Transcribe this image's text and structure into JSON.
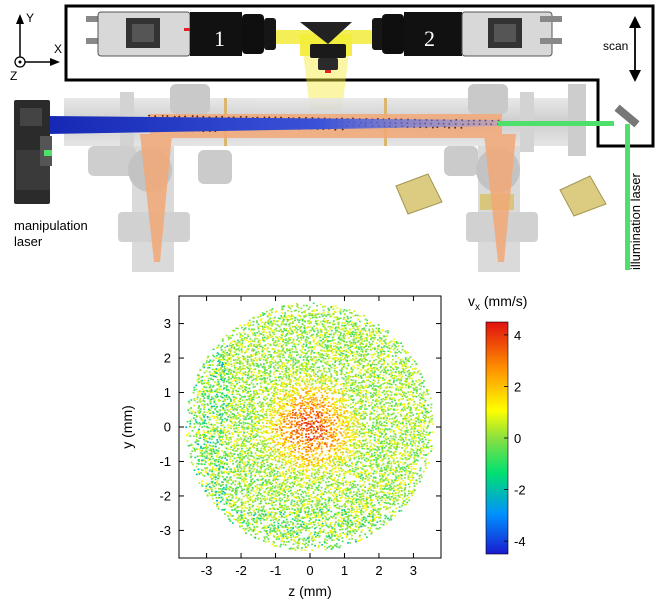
{
  "setup": {
    "axes": {
      "y": "Y",
      "x": "X",
      "z": "Z"
    },
    "camera_labels": [
      "1",
      "2"
    ],
    "scan_label": "scan",
    "manipulation_label_line1": "manipulation",
    "manipulation_label_line2": "laser",
    "illumination_label": "illumination laser"
  },
  "chart_data": {
    "type": "scatter",
    "xlabel": "z (mm)",
    "ylabel": "y (mm)",
    "xlim": [
      -3.8,
      3.8
    ],
    "ylim": [
      -3.8,
      3.8
    ],
    "xticks": [
      -3,
      -2,
      -1,
      0,
      1,
      2,
      3
    ],
    "yticks": [
      -3,
      -2,
      -1,
      0,
      1,
      2,
      3
    ],
    "xtick_labels": [
      "-3",
      "-2",
      "-1",
      "0",
      "1",
      "2",
      "3"
    ],
    "ytick_labels": [
      "-3",
      "-2",
      "-1",
      "0",
      "1",
      "2",
      "3"
    ],
    "field_radius_mm": 3.6,
    "peak_vx_center_mm_s": 3.5,
    "background_vx_mm_s": 0.2,
    "colorbar": {
      "label": "v",
      "label_sub": "x",
      "label_unit": " (mm/s)",
      "min": -4.5,
      "max": 4.5,
      "ticks": [
        4,
        2,
        0,
        -2,
        -4
      ],
      "tick_labels": [
        "4",
        "2",
        "0",
        "-2",
        "-4"
      ],
      "colormap": [
        "#1a1ad0",
        "#0090ff",
        "#00e070",
        "#8ae040",
        "#ffff00",
        "#ff9000",
        "#e01010"
      ]
    }
  },
  "colors": {
    "laser_blue": "#1428b4",
    "laser_green": "#4ee06a",
    "beam_yellow": "#f3ec3a",
    "chamber_orange": "#f2a877",
    "chamber_gray": "#d3d3d3"
  }
}
